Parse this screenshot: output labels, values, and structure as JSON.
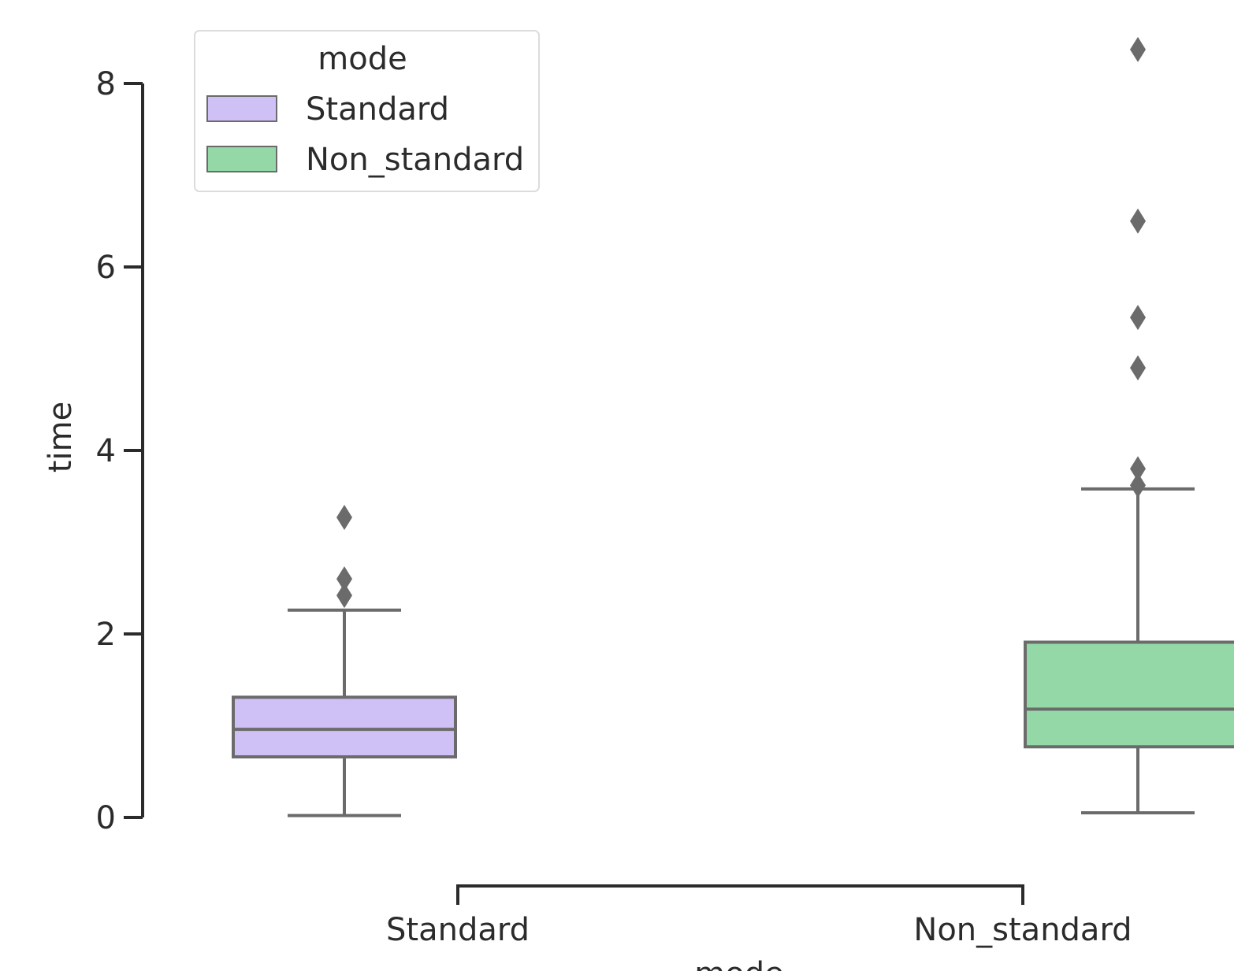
{
  "chart_data": {
    "type": "box",
    "title": "",
    "xlabel": "mode",
    "ylabel": "time",
    "ylim": [
      0,
      8.6
    ],
    "yticks": [
      0,
      2,
      4,
      6,
      8
    ],
    "categories": [
      "Standard",
      "Non_standard"
    ],
    "grid": false,
    "legend": {
      "title": "mode",
      "placement": "upper-left",
      "entries": [
        {
          "label": "Standard",
          "color": "#cfc0f5"
        },
        {
          "label": "Non_standard",
          "color": "#93d8a6"
        }
      ]
    },
    "box_stroke_color": "#6b6b6b",
    "axis_color": "#2b2b2b",
    "series": [
      {
        "category": "Standard",
        "color": "#cfc0f5",
        "whisker_low": 0.02,
        "q1": 0.66,
        "median": 0.96,
        "q3": 1.31,
        "whisker_high": 2.26,
        "outliers": [
          2.42,
          2.6,
          3.27
        ]
      },
      {
        "category": "Non_standard",
        "color": "#93d8a6",
        "whisker_low": 0.05,
        "q1": 0.77,
        "median": 1.18,
        "q3": 1.91,
        "whisker_high": 3.58,
        "outliers": [
          3.62,
          3.8,
          4.9,
          5.45,
          6.5,
          8.37
        ]
      }
    ]
  }
}
